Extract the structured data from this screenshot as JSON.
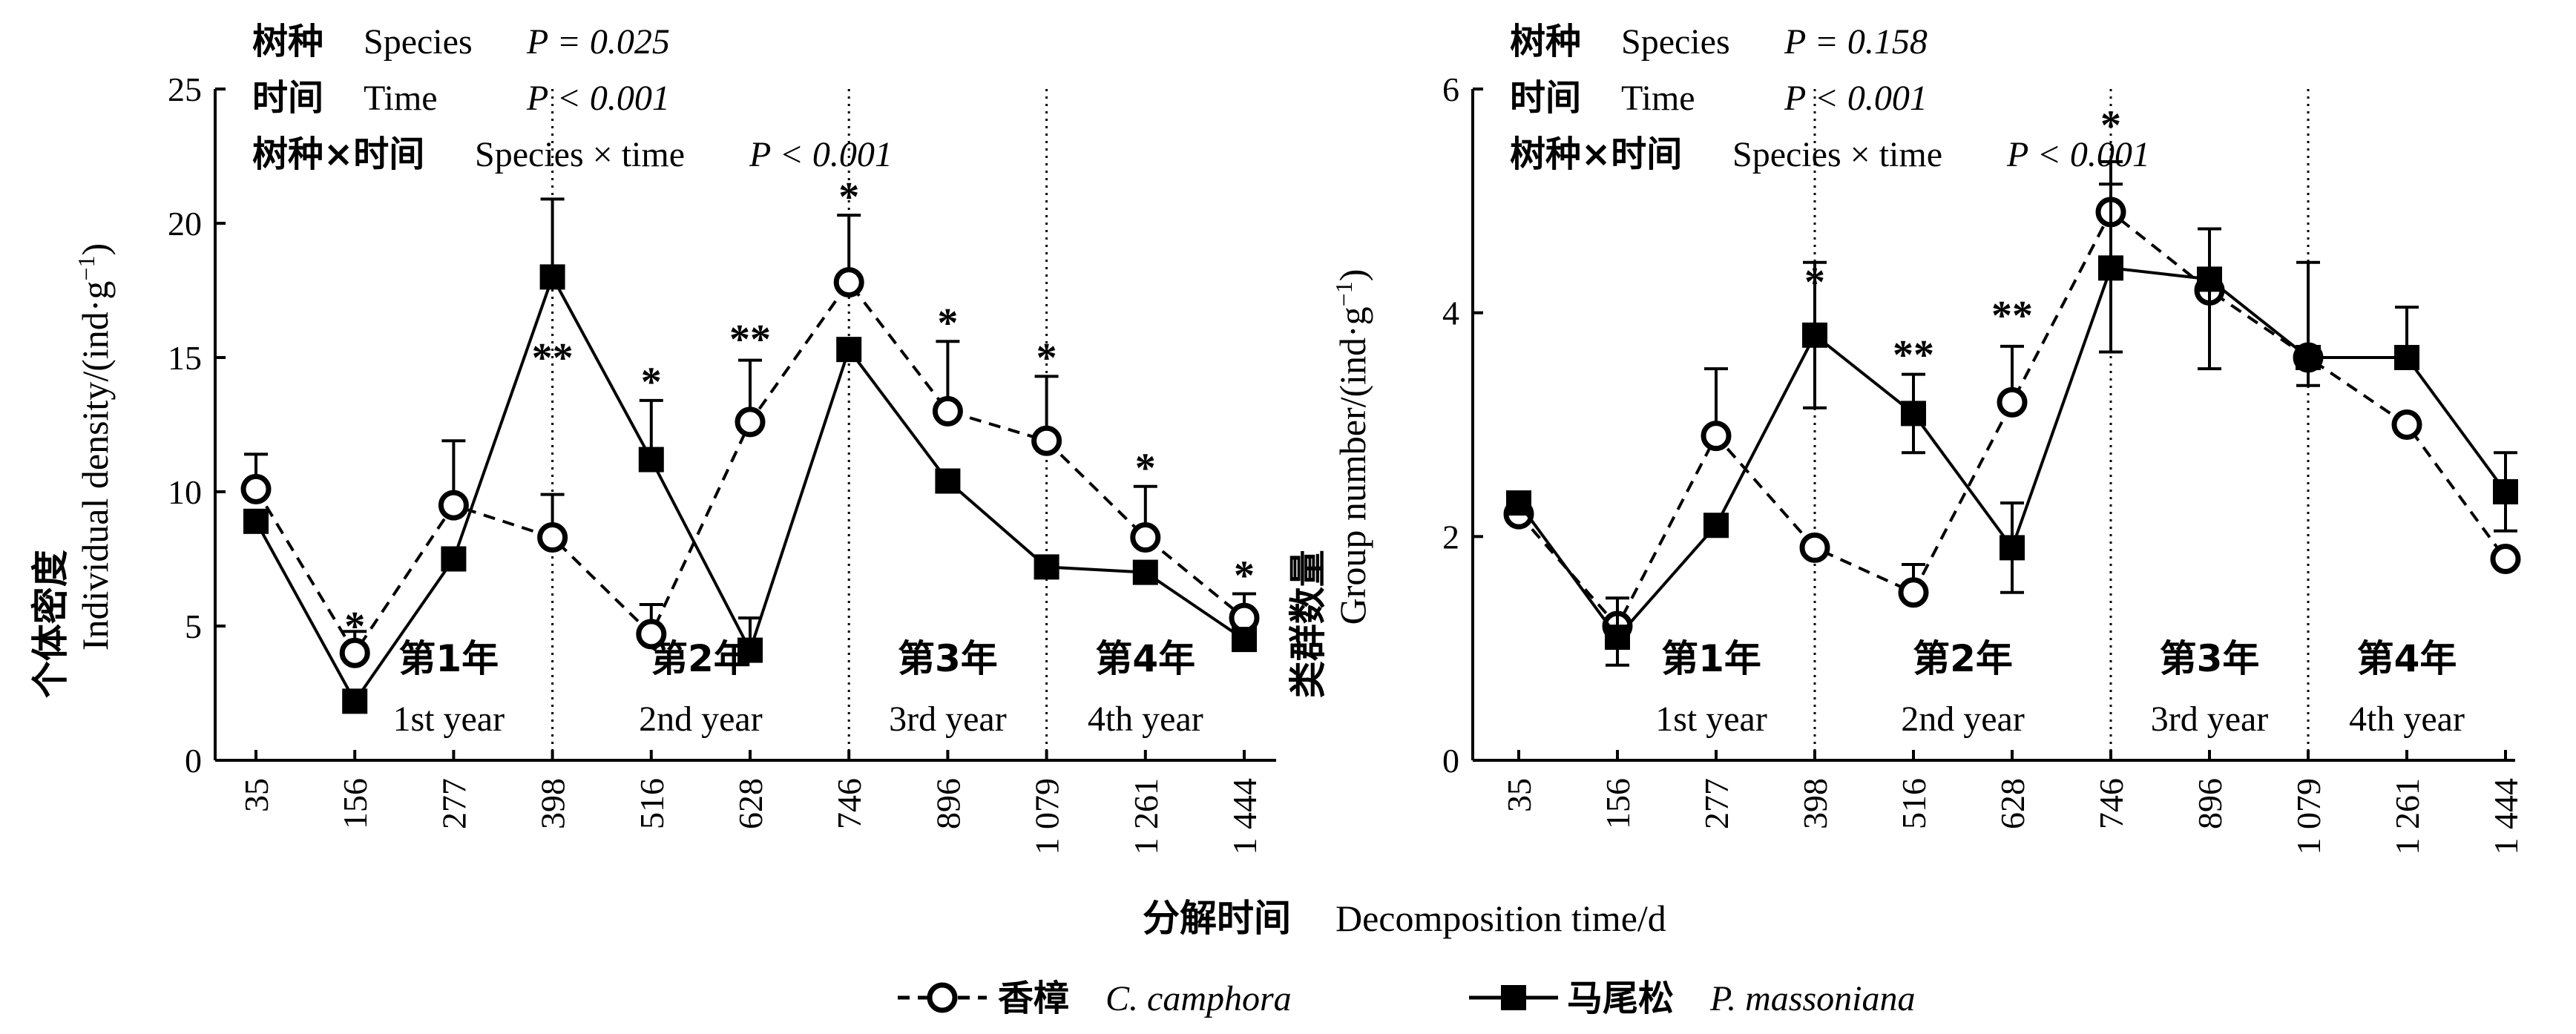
{
  "chart_data": [
    {
      "type": "line",
      "x_categories": [
        "35",
        "156",
        "277",
        "398",
        "516",
        "628",
        "746",
        "896",
        "1 079",
        "1 261",
        "1 444"
      ],
      "ylabel_zh": "个体密度",
      "ylabel_en": "Individual density/(ind·g",
      "ylabel_sup": "−1",
      "ylabel_end": ")",
      "ylim": [
        0,
        25
      ],
      "yticks": [
        0,
        5,
        10,
        15,
        20,
        25
      ],
      "stats": [
        {
          "zh": "树种",
          "en": "Species",
          "p": "P = 0.025"
        },
        {
          "zh": "时间",
          "en": "Time",
          "p": "P < 0.001"
        },
        {
          "zh": "树种×时间",
          "en": "Species × time",
          "p": "P < 0.001"
        }
      ],
      "periods": [
        {
          "zh": "第1年",
          "en": "1st year"
        },
        {
          "zh": "第2年",
          "en": "2nd year"
        },
        {
          "zh": "第3年",
          "en": "3rd year"
        },
        {
          "zh": "第4年",
          "en": "4th year"
        }
      ],
      "year_dividers": [
        3,
        6,
        8
      ],
      "series": [
        {
          "name": "香樟 C. camphora",
          "style": "dashed-circle",
          "values": [
            10.1,
            4.0,
            9.5,
            8.3,
            4.7,
            12.6,
            17.8,
            13.0,
            11.9,
            8.3,
            5.3
          ],
          "errors": [
            1.3,
            0.8,
            2.4,
            1.6,
            1.1,
            2.3,
            2.5,
            2.6,
            2.4,
            1.9,
            0.9
          ]
        },
        {
          "name": "马尾松 P. massoniana",
          "style": "solid-square",
          "values": [
            8.9,
            2.2,
            7.5,
            18.0,
            11.2,
            4.1,
            15.3,
            10.4,
            7.2,
            7.0,
            4.5
          ],
          "errors": [
            0.0,
            0.0,
            0.0,
            2.9,
            2.2,
            1.2,
            0.0,
            0.0,
            0.0,
            0.0,
            0.0
          ]
        }
      ],
      "significance": [
        {
          "x_index": 1,
          "label": "*",
          "y": 5.3
        },
        {
          "x_index": 3,
          "label": "**",
          "y": 15.3
        },
        {
          "x_index": 4,
          "label": "*",
          "y": 14.4
        },
        {
          "x_index": 5,
          "label": "**",
          "y": 16.0
        },
        {
          "x_index": 6,
          "label": "*",
          "y": 21.3
        },
        {
          "x_index": 7,
          "label": "*",
          "y": 16.6
        },
        {
          "x_index": 8,
          "label": "*",
          "y": 15.3
        },
        {
          "x_index": 9,
          "label": "*",
          "y": 11.2
        },
        {
          "x_index": 10,
          "label": "*",
          "y": 7.2
        }
      ]
    },
    {
      "type": "line",
      "x_categories": [
        "35",
        "156",
        "277",
        "398",
        "516",
        "628",
        "746",
        "896",
        "1 079",
        "1 261",
        "1 444"
      ],
      "ylabel_zh": "类群数量",
      "ylabel_en": "Group number/(ind·g",
      "ylabel_sup": "−1",
      "ylabel_end": ")",
      "ylim": [
        0,
        6
      ],
      "yticks": [
        0,
        2,
        4,
        6
      ],
      "stats": [
        {
          "zh": "树种",
          "en": "Species",
          "p": "P = 0.158"
        },
        {
          "zh": "时间",
          "en": "Time",
          "p": "P < 0.001"
        },
        {
          "zh": "树种×时间",
          "en": "Species × time",
          "p": "P < 0.001"
        }
      ],
      "periods": [
        {
          "zh": "第1年",
          "en": "1st year"
        },
        {
          "zh": "第2年",
          "en": "2nd year"
        },
        {
          "zh": "第3年",
          "en": "3rd year"
        },
        {
          "zh": "第4年",
          "en": "4th year"
        }
      ],
      "year_dividers": [
        3,
        6,
        8
      ],
      "series": [
        {
          "name": "香樟 C. camphora",
          "style": "dashed-circle",
          "values": [
            2.2,
            1.2,
            2.9,
            1.9,
            1.5,
            3.2,
            4.9,
            4.2,
            3.6,
            3.0,
            1.8
          ],
          "errors": [
            0.0,
            0.0,
            0.6,
            0.0,
            0.25,
            0.5,
            0.45,
            0.0,
            0.0,
            0.0,
            0.0
          ]
        },
        {
          "name": "马尾松 P. massoniana",
          "style": "solid-square",
          "values": [
            2.3,
            1.1,
            2.1,
            3.8,
            3.1,
            1.9,
            4.4,
            4.3,
            3.6,
            3.6,
            2.4
          ],
          "errors": [
            0.0,
            0.35,
            0.0,
            0.65,
            0.35,
            0.4,
            0.75,
            0.45,
            0.85,
            0.45,
            0.35
          ],
          "errors_down": [
            0.0,
            0.25,
            0.0,
            0.65,
            0.35,
            0.4,
            0.75,
            0.8,
            0.25,
            0.0,
            0.35
          ]
        }
      ],
      "significance": [
        {
          "x_index": 3,
          "label": "*",
          "y": 4.35
        },
        {
          "x_index": 4,
          "label": "**",
          "y": 3.7
        },
        {
          "x_index": 5,
          "label": "**",
          "y": 4.05
        },
        {
          "x_index": 6,
          "label": "*",
          "y": 5.75
        }
      ]
    }
  ],
  "xlabel_zh": "分解时间",
  "xlabel_en": "Decomposition time/d",
  "legend": {
    "placement": "bottom-center",
    "items": [
      {
        "zh": "香樟",
        "en": "C. camphora",
        "style": "dashed-circle"
      },
      {
        "zh": "马尾松",
        "en": "P. massoniana",
        "style": "solid-square"
      }
    ]
  }
}
